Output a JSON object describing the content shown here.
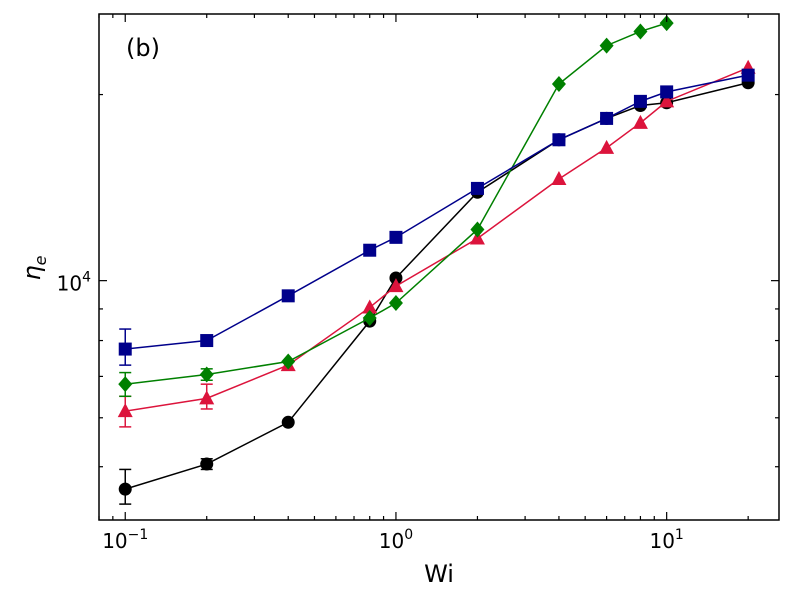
{
  "chart_data": {
    "type": "line",
    "panel_label": "(b)",
    "xlabel": "Wi",
    "ylabel": "η",
    "ylabel_sub": "e",
    "xscale": "log",
    "yscale": "log",
    "xlim": [
      0.08,
      26
    ],
    "ylim": [
      4100,
      27000
    ],
    "grid": false,
    "legend": "none",
    "x_tick_labels": [
      {
        "value": 0.1,
        "base": "10",
        "exp": "−1"
      },
      {
        "value": 1,
        "base": "10",
        "exp": "0"
      },
      {
        "value": 10,
        "base": "10",
        "exp": "1"
      }
    ],
    "y_tick_labels": [
      {
        "value": 10000,
        "base": "10",
        "exp": "4"
      }
    ],
    "series": [
      {
        "color": "#000000",
        "marker": "circle",
        "points": [
          {
            "x": 0.1,
            "y": 4600,
            "err": [
              4350,
              4950
            ]
          },
          {
            "x": 0.2,
            "y": 5050,
            "err": [
              4950,
              5150
            ]
          },
          {
            "x": 0.4,
            "y": 5900
          },
          {
            "x": 0.8,
            "y": 8600
          },
          {
            "x": 1,
            "y": 10100
          },
          {
            "x": 2,
            "y": 13900
          },
          {
            "x": 4,
            "y": 16900
          },
          {
            "x": 6,
            "y": 18300
          },
          {
            "x": 8,
            "y": 19200
          },
          {
            "x": 10,
            "y": 19400
          },
          {
            "x": 20,
            "y": 20900
          }
        ]
      },
      {
        "color": "#dc143c",
        "marker": "triangle",
        "points": [
          {
            "x": 0.1,
            "y": 6150,
            "err": [
              5800,
              6500
            ]
          },
          {
            "x": 0.2,
            "y": 6450,
            "err": [
              6200,
              6800
            ]
          },
          {
            "x": 0.4,
            "y": 7300
          },
          {
            "x": 0.8,
            "y": 9050
          },
          {
            "x": 1,
            "y": 9800
          },
          {
            "x": 2,
            "y": 11700
          },
          {
            "x": 4,
            "y": 14600
          },
          {
            "x": 6,
            "y": 16400
          },
          {
            "x": 8,
            "y": 18000
          },
          {
            "x": 10,
            "y": 19500
          },
          {
            "x": 20,
            "y": 22100
          }
        ]
      },
      {
        "color": "#008000",
        "marker": "diamond",
        "points": [
          {
            "x": 0.1,
            "y": 6800,
            "err": [
              6500,
              7100
            ]
          },
          {
            "x": 0.2,
            "y": 7050,
            "err": [
              6900,
              7200
            ]
          },
          {
            "x": 0.4,
            "y": 7400
          },
          {
            "x": 0.8,
            "y": 8700
          },
          {
            "x": 1,
            "y": 9200
          },
          {
            "x": 2,
            "y": 12100
          },
          {
            "x": 4,
            "y": 20800
          },
          {
            "x": 6,
            "y": 24000
          },
          {
            "x": 8,
            "y": 25300
          },
          {
            "x": 10,
            "y": 26100
          }
        ]
      },
      {
        "color": "#00008b",
        "marker": "square",
        "points": [
          {
            "x": 0.1,
            "y": 7750,
            "err": [
              7300,
              8350
            ]
          },
          {
            "x": 0.2,
            "y": 8000,
            "err": [
              7850,
              8150
            ]
          },
          {
            "x": 0.4,
            "y": 9450
          },
          {
            "x": 0.8,
            "y": 11200
          },
          {
            "x": 1,
            "y": 11750
          },
          {
            "x": 2,
            "y": 14100
          },
          {
            "x": 4,
            "y": 16900
          },
          {
            "x": 6,
            "y": 18300
          },
          {
            "x": 8,
            "y": 19500
          },
          {
            "x": 10,
            "y": 20200
          },
          {
            "x": 20,
            "y": 21500
          }
        ]
      }
    ]
  }
}
